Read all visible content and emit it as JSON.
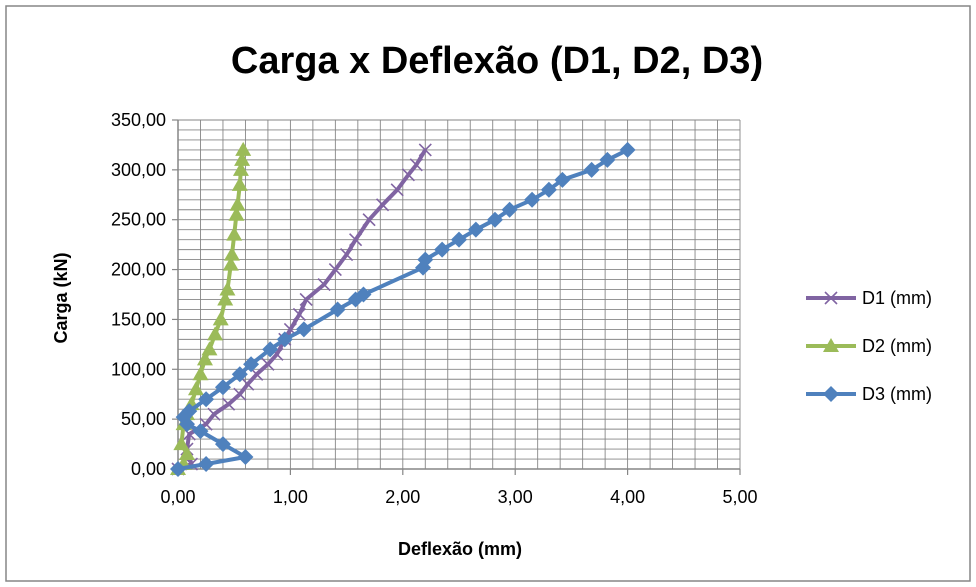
{
  "chart_data": {
    "type": "line",
    "title": "Carga x Deflexão (D1, D2, D3)",
    "xlabel": "Deflexão (mm)",
    "ylabel": "Carga (kN)",
    "xlim": [
      0,
      5
    ],
    "ylim": [
      0,
      350
    ],
    "x_ticks": [
      "0,00",
      "1,00",
      "2,00",
      "3,00",
      "4,00",
      "5,00"
    ],
    "y_ticks": [
      "0,00",
      "50,00",
      "100,00",
      "150,00",
      "200,00",
      "250,00",
      "300,00",
      "350,00"
    ],
    "grid": true,
    "legend_position": "right",
    "series": [
      {
        "name": "D1 (mm)",
        "color": "#8064A2",
        "marker": "x",
        "points": [
          [
            0.0,
            0
          ],
          [
            0.12,
            5
          ],
          [
            0.08,
            20
          ],
          [
            0.1,
            35
          ],
          [
            0.25,
            45
          ],
          [
            0.32,
            55
          ],
          [
            0.45,
            65
          ],
          [
            0.55,
            75
          ],
          [
            0.62,
            85
          ],
          [
            0.7,
            95
          ],
          [
            0.8,
            105
          ],
          [
            0.88,
            115
          ],
          [
            0.95,
            130
          ],
          [
            1.0,
            140
          ],
          [
            1.08,
            155
          ],
          [
            1.14,
            170
          ],
          [
            1.3,
            185
          ],
          [
            1.4,
            200
          ],
          [
            1.5,
            215
          ],
          [
            1.58,
            230
          ],
          [
            1.7,
            250
          ],
          [
            1.82,
            265
          ],
          [
            1.95,
            280
          ],
          [
            2.05,
            295
          ],
          [
            2.12,
            305
          ],
          [
            2.2,
            320
          ]
        ]
      },
      {
        "name": "D2 (mm)",
        "color": "#9BBB59",
        "marker": "triangle",
        "points": [
          [
            0.0,
            0
          ],
          [
            0.05,
            5
          ],
          [
            0.08,
            15
          ],
          [
            0.03,
            25
          ],
          [
            0.05,
            45
          ],
          [
            0.08,
            55
          ],
          [
            0.12,
            65
          ],
          [
            0.16,
            80
          ],
          [
            0.2,
            95
          ],
          [
            0.24,
            110
          ],
          [
            0.28,
            120
          ],
          [
            0.33,
            135
          ],
          [
            0.38,
            150
          ],
          [
            0.42,
            170
          ],
          [
            0.44,
            180
          ],
          [
            0.47,
            205
          ],
          [
            0.48,
            215
          ],
          [
            0.5,
            235
          ],
          [
            0.52,
            255
          ],
          [
            0.53,
            265
          ],
          [
            0.55,
            285
          ],
          [
            0.56,
            300
          ],
          [
            0.57,
            310
          ],
          [
            0.58,
            320
          ]
        ]
      },
      {
        "name": "D3 (mm)",
        "color": "#4F81BD",
        "marker": "diamond",
        "points": [
          [
            0.0,
            0
          ],
          [
            0.25,
            5
          ],
          [
            0.6,
            12
          ],
          [
            0.4,
            25
          ],
          [
            0.2,
            38
          ],
          [
            0.08,
            45
          ],
          [
            0.05,
            52
          ],
          [
            0.1,
            58
          ],
          [
            0.25,
            70
          ],
          [
            0.4,
            82
          ],
          [
            0.55,
            95
          ],
          [
            0.65,
            105
          ],
          [
            0.82,
            120
          ],
          [
            0.95,
            130
          ],
          [
            1.12,
            140
          ],
          [
            1.42,
            160
          ],
          [
            1.58,
            170
          ],
          [
            1.65,
            175
          ],
          [
            2.18,
            202
          ],
          [
            2.2,
            210
          ],
          [
            2.35,
            220
          ],
          [
            2.5,
            230
          ],
          [
            2.65,
            240
          ],
          [
            2.82,
            250
          ],
          [
            2.95,
            260
          ],
          [
            3.15,
            270
          ],
          [
            3.3,
            280
          ],
          [
            3.42,
            290
          ],
          [
            3.68,
            300
          ],
          [
            3.82,
            310
          ],
          [
            4.0,
            320
          ]
        ]
      }
    ]
  }
}
